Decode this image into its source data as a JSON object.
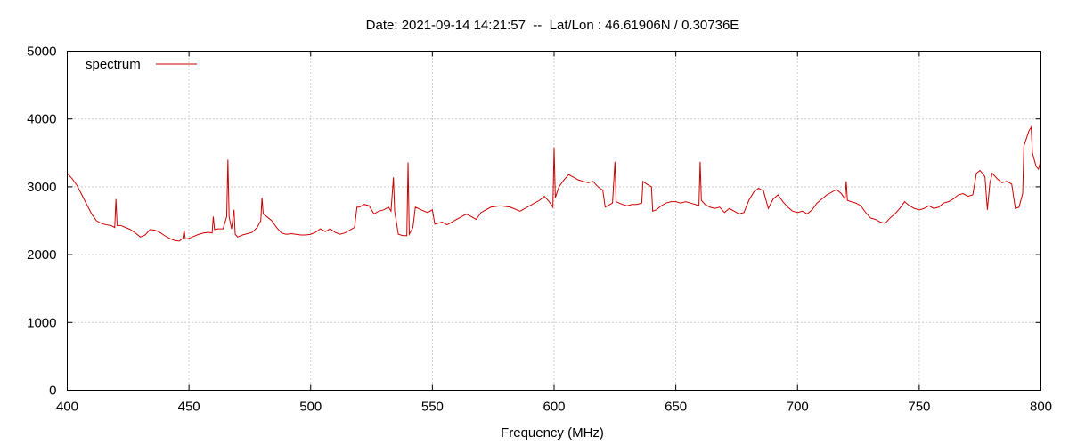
{
  "chart_data": {
    "type": "line",
    "title": "Date: 2021-09-14 14:21:57  --  Lat/Lon : 46.61906N / 0.30736E",
    "xlabel": "Frequency (MHz)",
    "ylabel": "",
    "xlim": [
      400,
      800
    ],
    "ylim": [
      0,
      5000
    ],
    "xticks": [
      400,
      450,
      500,
      550,
      600,
      650,
      700,
      750,
      800
    ],
    "yticks": [
      0,
      1000,
      2000,
      3000,
      4000,
      5000
    ],
    "grid": true,
    "legend_position": "top-left",
    "series": [
      {
        "name": "spectrum",
        "color": "#cc0000",
        "points": [
          [
            400,
            3200
          ],
          [
            402,
            3120
          ],
          [
            404,
            3020
          ],
          [
            406,
            2880
          ],
          [
            408,
            2740
          ],
          [
            410,
            2600
          ],
          [
            412,
            2500
          ],
          [
            414,
            2460
          ],
          [
            416,
            2440
          ],
          [
            418,
            2430
          ],
          [
            419.5,
            2400
          ],
          [
            420,
            2820
          ],
          [
            420.5,
            2430
          ],
          [
            422,
            2430
          ],
          [
            424,
            2400
          ],
          [
            426,
            2370
          ],
          [
            428,
            2320
          ],
          [
            430,
            2260
          ],
          [
            432,
            2290
          ],
          [
            434,
            2370
          ],
          [
            436,
            2360
          ],
          [
            438,
            2330
          ],
          [
            440,
            2280
          ],
          [
            442,
            2240
          ],
          [
            444,
            2210
          ],
          [
            446,
            2200
          ],
          [
            447.5,
            2240
          ],
          [
            448,
            2360
          ],
          [
            448.5,
            2230
          ],
          [
            450,
            2240
          ],
          [
            452,
            2270
          ],
          [
            454,
            2300
          ],
          [
            456,
            2320
          ],
          [
            458,
            2330
          ],
          [
            459.5,
            2320
          ],
          [
            460,
            2560
          ],
          [
            460.5,
            2370
          ],
          [
            462,
            2380
          ],
          [
            464,
            2380
          ],
          [
            465.5,
            2560
          ],
          [
            466,
            3400
          ],
          [
            466.5,
            2560
          ],
          [
            467.5,
            2380
          ],
          [
            468.5,
            2660
          ],
          [
            469,
            2300
          ],
          [
            470,
            2260
          ],
          [
            472,
            2290
          ],
          [
            474,
            2310
          ],
          [
            476,
            2330
          ],
          [
            478,
            2400
          ],
          [
            479.5,
            2500
          ],
          [
            480,
            2840
          ],
          [
            480.5,
            2600
          ],
          [
            482,
            2560
          ],
          [
            484,
            2500
          ],
          [
            486,
            2400
          ],
          [
            488,
            2320
          ],
          [
            490,
            2300
          ],
          [
            492,
            2310
          ],
          [
            494,
            2300
          ],
          [
            496,
            2290
          ],
          [
            498,
            2290
          ],
          [
            500,
            2300
          ],
          [
            502,
            2330
          ],
          [
            504,
            2380
          ],
          [
            506,
            2340
          ],
          [
            508,
            2380
          ],
          [
            510,
            2330
          ],
          [
            512,
            2300
          ],
          [
            514,
            2320
          ],
          [
            516,
            2360
          ],
          [
            518,
            2400
          ],
          [
            519,
            2700
          ],
          [
            520,
            2700
          ],
          [
            522,
            2740
          ],
          [
            524,
            2720
          ],
          [
            526,
            2600
          ],
          [
            528,
            2640
          ],
          [
            530,
            2660
          ],
          [
            532,
            2700
          ],
          [
            533,
            2640
          ],
          [
            534,
            3140
          ],
          [
            534.5,
            2640
          ],
          [
            536,
            2300
          ],
          [
            538,
            2280
          ],
          [
            539.5,
            2280
          ],
          [
            540,
            3360
          ],
          [
            540.5,
            2300
          ],
          [
            542,
            2400
          ],
          [
            543,
            2700
          ],
          [
            546,
            2650
          ],
          [
            548,
            2620
          ],
          [
            550,
            2660
          ],
          [
            551,
            2450
          ],
          [
            554,
            2480
          ],
          [
            556,
            2440
          ],
          [
            558,
            2480
          ],
          [
            560,
            2520
          ],
          [
            562,
            2560
          ],
          [
            564,
            2600
          ],
          [
            566,
            2560
          ],
          [
            568,
            2520
          ],
          [
            570,
            2620
          ],
          [
            574,
            2700
          ],
          [
            578,
            2720
          ],
          [
            582,
            2700
          ],
          [
            586,
            2640
          ],
          [
            590,
            2720
          ],
          [
            594,
            2800
          ],
          [
            596,
            2860
          ],
          [
            598,
            2780
          ],
          [
            599.5,
            2700
          ],
          [
            600,
            3580
          ],
          [
            600.5,
            2840
          ],
          [
            602,
            3000
          ],
          [
            604,
            3100
          ],
          [
            606,
            3180
          ],
          [
            608,
            3140
          ],
          [
            610,
            3100
          ],
          [
            612,
            3080
          ],
          [
            614,
            3060
          ],
          [
            616,
            3080
          ],
          [
            618,
            3000
          ],
          [
            620,
            2950
          ],
          [
            621,
            2700
          ],
          [
            624,
            2760
          ],
          [
            625,
            3370
          ],
          [
            625.5,
            2780
          ],
          [
            628,
            2740
          ],
          [
            630,
            2720
          ],
          [
            632,
            2740
          ],
          [
            634,
            2740
          ],
          [
            636,
            2760
          ],
          [
            636.5,
            3080
          ],
          [
            638,
            3040
          ],
          [
            640,
            3000
          ],
          [
            640.5,
            2640
          ],
          [
            642,
            2660
          ],
          [
            644,
            2720
          ],
          [
            646,
            2760
          ],
          [
            648,
            2780
          ],
          [
            650,
            2780
          ],
          [
            652,
            2760
          ],
          [
            654,
            2780
          ],
          [
            656,
            2760
          ],
          [
            658,
            2740
          ],
          [
            659.5,
            2720
          ],
          [
            660,
            3370
          ],
          [
            660.5,
            2800
          ],
          [
            662,
            2740
          ],
          [
            664,
            2700
          ],
          [
            666,
            2680
          ],
          [
            668,
            2700
          ],
          [
            670,
            2620
          ],
          [
            672,
            2680
          ],
          [
            674,
            2640
          ],
          [
            676,
            2600
          ],
          [
            678,
            2620
          ],
          [
            680,
            2800
          ],
          [
            682,
            2920
          ],
          [
            684,
            2980
          ],
          [
            686,
            2940
          ],
          [
            688,
            2680
          ],
          [
            690,
            2820
          ],
          [
            692,
            2880
          ],
          [
            694,
            2780
          ],
          [
            696,
            2700
          ],
          [
            698,
            2640
          ],
          [
            700,
            2620
          ],
          [
            702,
            2640
          ],
          [
            704,
            2600
          ],
          [
            706,
            2660
          ],
          [
            708,
            2760
          ],
          [
            710,
            2820
          ],
          [
            712,
            2880
          ],
          [
            714,
            2920
          ],
          [
            716,
            2960
          ],
          [
            718,
            2900
          ],
          [
            719.5,
            2820
          ],
          [
            720,
            3080
          ],
          [
            720.5,
            2800
          ],
          [
            722,
            2780
          ],
          [
            724,
            2760
          ],
          [
            726,
            2720
          ],
          [
            728,
            2620
          ],
          [
            730,
            2540
          ],
          [
            732,
            2520
          ],
          [
            734,
            2480
          ],
          [
            736,
            2460
          ],
          [
            738,
            2540
          ],
          [
            740,
            2600
          ],
          [
            742,
            2680
          ],
          [
            744,
            2780
          ],
          [
            746,
            2720
          ],
          [
            748,
            2680
          ],
          [
            750,
            2660
          ],
          [
            752,
            2680
          ],
          [
            754,
            2720
          ],
          [
            756,
            2680
          ],
          [
            758,
            2700
          ],
          [
            760,
            2760
          ],
          [
            762,
            2780
          ],
          [
            764,
            2820
          ],
          [
            766,
            2880
          ],
          [
            768,
            2900
          ],
          [
            770,
            2860
          ],
          [
            772,
            2880
          ],
          [
            773.5,
            3200
          ],
          [
            775,
            3240
          ],
          [
            777,
            3150
          ],
          [
            778,
            2660
          ],
          [
            779,
            3050
          ],
          [
            780,
            3200
          ],
          [
            782,
            3120
          ],
          [
            784,
            3060
          ],
          [
            786,
            3080
          ],
          [
            788,
            3040
          ],
          [
            789.5,
            2680
          ],
          [
            791,
            2700
          ],
          [
            792.5,
            2900
          ],
          [
            793,
            3600
          ],
          [
            795,
            3820
          ],
          [
            796,
            3880
          ],
          [
            796.5,
            3500
          ],
          [
            798,
            3300
          ],
          [
            799,
            3260
          ],
          [
            800,
            3400
          ]
        ]
      }
    ]
  }
}
